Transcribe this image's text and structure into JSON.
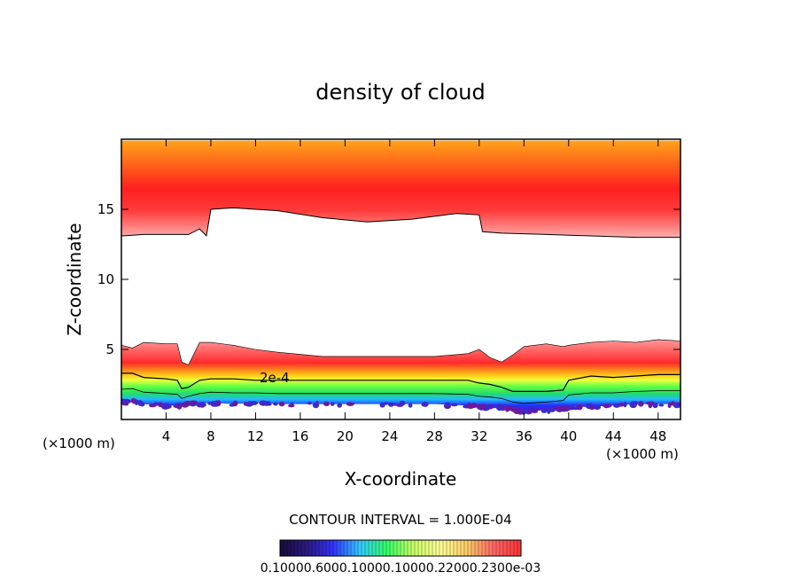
{
  "chart_data": {
    "type": "heatmap",
    "title": "density of cloud",
    "xlabel": "X-coordinate",
    "ylabel": "Z-coordinate",
    "x_unit_left": "(×1000 m)",
    "x_unit_right": "(×1000 m)",
    "xlim": [
      0,
      50
    ],
    "ylim": [
      0,
      20
    ],
    "x_ticks": [
      4,
      8,
      12,
      16,
      20,
      24,
      28,
      32,
      36,
      40,
      44,
      48
    ],
    "x_tick_labels": [
      "4",
      "8",
      "12",
      "16",
      "20",
      "24",
      "28",
      "32",
      "36",
      "40",
      "44",
      "48"
    ],
    "y_ticks": [
      5,
      10,
      15
    ],
    "y_tick_labels": [
      "5",
      "10",
      "15"
    ],
    "contour_label": "2e-4",
    "contour_interval_text": "CONTOUR INTERVAL = 1.000E-04",
    "colorbar_labels_text": "0.10000.6000.10000.10000.22000.2300e-03",
    "upper_layer": {
      "x": [
        0,
        2,
        4,
        6,
        7,
        7.6,
        8,
        10,
        14,
        18,
        22,
        26,
        30,
        32,
        32.3,
        34,
        38,
        42,
        46,
        50
      ],
      "base_km": [
        13.1,
        13.2,
        13.2,
        13.2,
        13.6,
        13.1,
        15.0,
        15.1,
        14.9,
        14.4,
        14.1,
        14.3,
        14.7,
        14.6,
        13.4,
        13.3,
        13.2,
        13.1,
        13.0,
        13.0
      ],
      "top_km": [
        19.9,
        19.9,
        19.9,
        19.9,
        19.9,
        19.9,
        19.9,
        19.9,
        19.9,
        19.9,
        19.9,
        19.9,
        19.9,
        19.9,
        19.9,
        19.9,
        19.9,
        19.9,
        19.9,
        19.9
      ]
    },
    "lower_layer": {
      "x": [
        0,
        1,
        2,
        4,
        5,
        5.4,
        6,
        7,
        8,
        10,
        12,
        14,
        18,
        24,
        28,
        31,
        32,
        33,
        34,
        35,
        36,
        38,
        39.5,
        40,
        42,
        44,
        46,
        48,
        50
      ],
      "top_km": [
        5.3,
        5.1,
        5.5,
        5.4,
        5.4,
        4.1,
        3.9,
        5.5,
        5.5,
        5.3,
        5.0,
        4.8,
        4.5,
        4.5,
        4.5,
        4.7,
        5.0,
        4.4,
        4.1,
        4.6,
        5.2,
        5.4,
        5.2,
        5.3,
        5.5,
        5.6,
        5.5,
        5.7,
        5.6
      ],
      "contour_2e4_km": [
        3.3,
        3.3,
        3.0,
        2.9,
        2.8,
        2.2,
        2.3,
        2.8,
        2.9,
        2.9,
        2.8,
        2.8,
        2.8,
        2.8,
        2.8,
        2.8,
        2.6,
        2.5,
        2.3,
        2.0,
        2.0,
        2.0,
        2.1,
        2.8,
        3.1,
        3.0,
        3.1,
        3.2,
        3.2
      ],
      "base_km": [
        1.2,
        1.3,
        1.1,
        1.0,
        1.0,
        1.0,
        1.2,
        1.1,
        1.2,
        1.1,
        1.2,
        1.1,
        1.1,
        1.1,
        1.1,
        1.0,
        0.9,
        0.9,
        0.9,
        0.7,
        0.5,
        0.7,
        0.8,
        0.9,
        0.9,
        1.0,
        1.1,
        1.1,
        1.1
      ]
    },
    "colorbar": {
      "min": 0.0001,
      "max": 0.0003,
      "stops": [
        "#1a0a3a",
        "#2a1a80",
        "#3333ff",
        "#33ccff",
        "#33ff66",
        "#ccff66",
        "#ffff99",
        "#ffcc66",
        "#ff6666",
        "#ff3333"
      ]
    }
  }
}
